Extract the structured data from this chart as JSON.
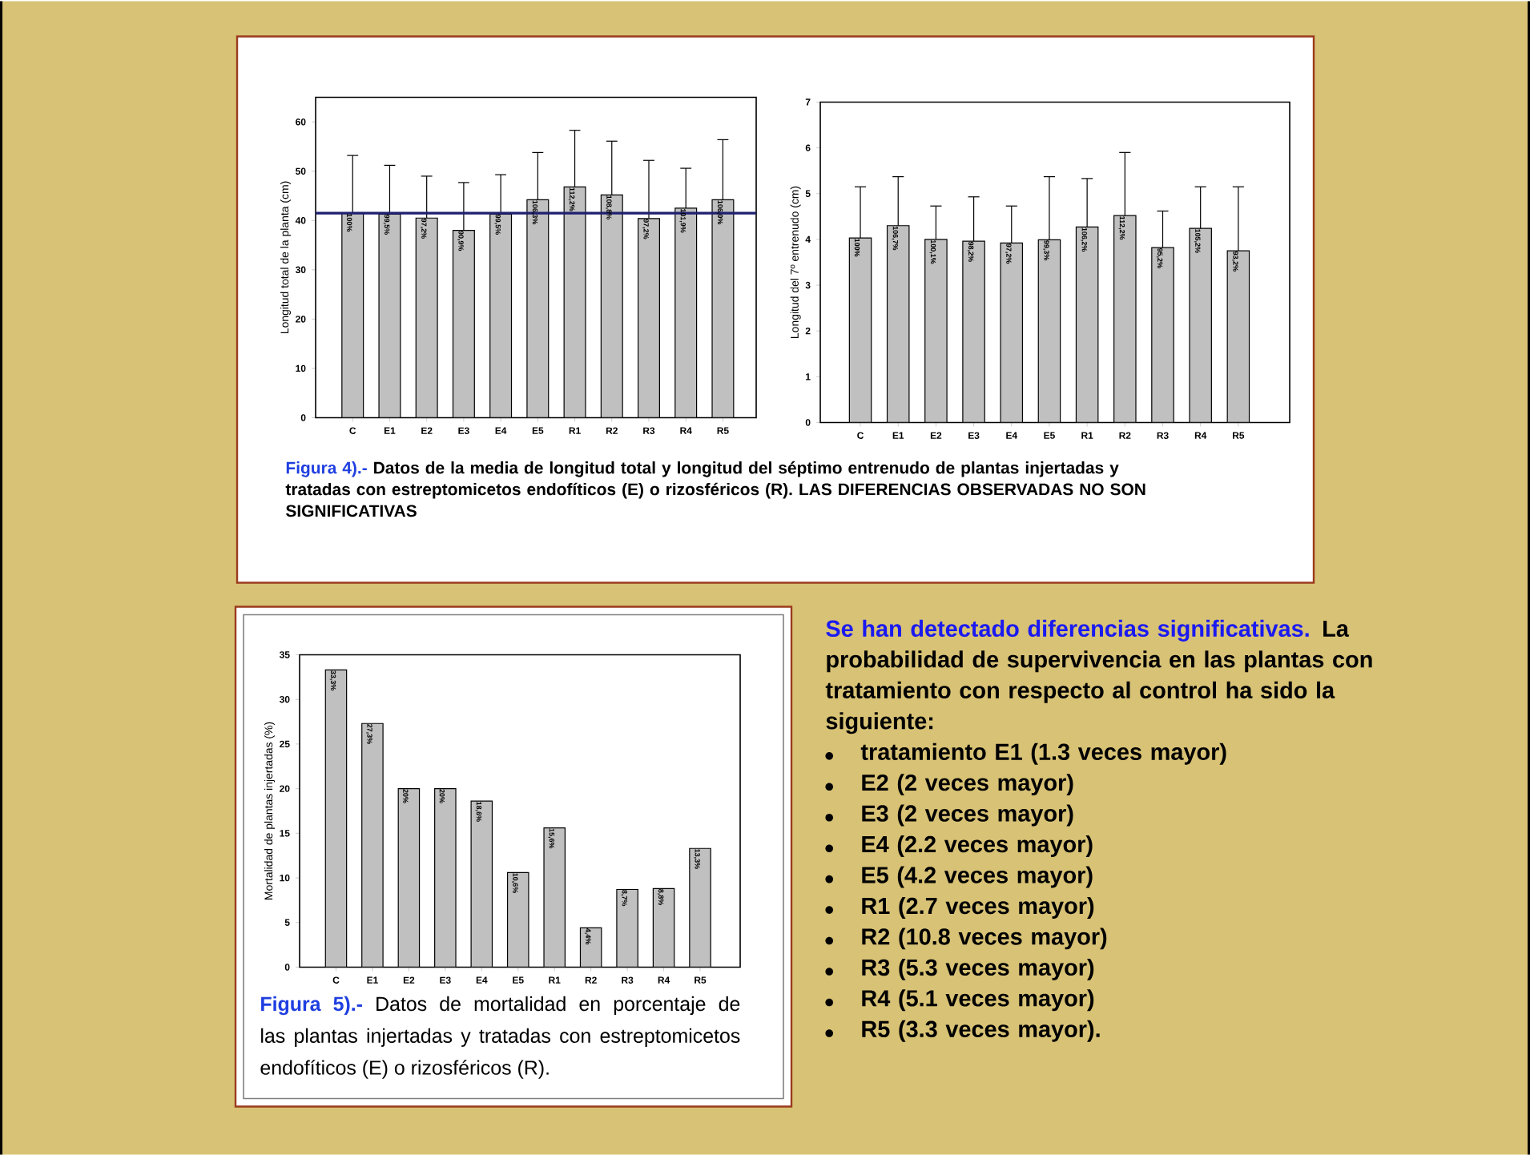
{
  "chart_data": [
    {
      "type": "bar",
      "ylabel": "Longitud total de la planta (cm)",
      "categories": [
        "C",
        "E1",
        "E2",
        "E3",
        "E4",
        "E5",
        "R1",
        "R2",
        "R3",
        "R4",
        "R5"
      ],
      "values": [
        41.5,
        41.3,
        40.5,
        38.0,
        41.3,
        44.2,
        46.8,
        45.2,
        40.4,
        42.5,
        44.2
      ],
      "errors": [
        [
          41.5,
          53.2
        ],
        [
          41.3,
          51.2
        ],
        [
          40.5,
          49.0
        ],
        [
          38.0,
          47.7
        ],
        [
          41.3,
          49.3
        ],
        [
          44.2,
          53.8
        ],
        [
          46.8,
          58.3
        ],
        [
          45.2,
          56.1
        ],
        [
          40.4,
          52.2
        ],
        [
          42.5,
          50.6
        ],
        [
          44.2,
          56.4
        ]
      ],
      "color": "#c0c0c0",
      "ylim": [
        0,
        65
      ],
      "yticks": [
        0,
        10,
        20,
        30,
        40,
        50,
        60
      ],
      "ref_lines": [
        {
          "axis": "y",
          "value": 41.5,
          "color": "#1f1f70"
        }
      ],
      "annotations": [
        "Figura 4).-",
        "Datos de la media de longitud total y longitud del séptimo entrenudo de plantas injertadas y tratadas con estreptomicetos endofíticos (E) o rizosféricos (R).",
        "LAS DIFERENCIAS OBSERVADAS NO SON SIGNIFICATIVAS",
        {
          "text": "100%",
          "x": "C",
          "y": 41.5
        },
        {
          "text": "99,5%",
          "x": "E1",
          "y": 41.3
        },
        {
          "text": "97,2%",
          "x": "E2",
          "y": 40.5
        },
        {
          "text": "90,9%",
          "x": "E3",
          "y": 38.0
        },
        {
          "text": "99,5%",
          "x": "E4",
          "y": 41.3
        },
        {
          "text": "106,3%",
          "x": "E5",
          "y": 44.2
        },
        {
          "text": "112,2%",
          "x": "R1",
          "y": 46.8
        },
        {
          "text": "108,8%",
          "x": "R2",
          "y": 45.2
        },
        {
          "text": "97,2%",
          "x": "R3",
          "y": 40.4
        },
        {
          "text": "101,9%",
          "x": "R4",
          "y": 42.5
        },
        {
          "text": "106,0%",
          "x": "R5",
          "y": 44.2
        }
      ]
    },
    {
      "type": "bar",
      "ylabel": "Longitud del 7º entrenudo (cm)",
      "categories": [
        "C",
        "E1",
        "E2",
        "E3",
        "E4",
        "E5",
        "R1",
        "R2",
        "R3",
        "R4",
        "R5"
      ],
      "values": [
        4.03,
        4.3,
        4.0,
        3.96,
        3.92,
        3.99,
        4.27,
        4.52,
        3.82,
        4.24,
        3.75
      ],
      "errors": [
        [
          4.03,
          5.15
        ],
        [
          4.3,
          5.37
        ],
        [
          4.0,
          4.73
        ],
        [
          3.96,
          4.93
        ],
        [
          3.92,
          4.73
        ],
        [
          3.99,
          5.37
        ],
        [
          4.27,
          5.33
        ],
        [
          4.52,
          5.9
        ],
        [
          3.82,
          4.62
        ],
        [
          4.24,
          5.15
        ],
        [
          3.75,
          5.15
        ]
      ],
      "color": "#c0c0c0",
      "ylim": [
        0,
        7
      ],
      "yticks": [
        0,
        1,
        2,
        3,
        4,
        5,
        6,
        7
      ],
      "annotations": [
        {
          "text": "100%",
          "x": "C",
          "y": 4.03
        },
        {
          "text": "106,7%",
          "x": "E1",
          "y": 4.3
        },
        {
          "text": "100,1%",
          "x": "E2",
          "y": 4.0
        },
        {
          "text": "98,2%",
          "x": "E3",
          "y": 3.96
        },
        {
          "text": "97,2%",
          "x": "E4",
          "y": 3.92
        },
        {
          "text": "99,3%",
          "x": "E5",
          "y": 3.99
        },
        {
          "text": "106,2%",
          "x": "R1",
          "y": 4.27
        },
        {
          "text": "112,2%",
          "x": "R2",
          "y": 4.52
        },
        {
          "text": "95,2%",
          "x": "R3",
          "y": 3.82
        },
        {
          "text": "105,2%",
          "x": "R4",
          "y": 4.24
        },
        {
          "text": "93,2%",
          "x": "R5",
          "y": 3.75
        }
      ]
    },
    {
      "type": "bar",
      "ylabel": "Mortalidad de plantas injertadas (%)",
      "categories": [
        "C",
        "E1",
        "E2",
        "E3",
        "E4",
        "E5",
        "R1",
        "R2",
        "R3",
        "R4",
        "R5"
      ],
      "values": [
        33.3,
        27.3,
        20.0,
        20.0,
        18.6,
        10.6,
        15.6,
        4.4,
        8.7,
        8.8,
        13.3
      ],
      "value_labels": [
        "33,3%",
        "27,3%",
        "20%",
        "20%",
        "18,6%",
        "10,6%",
        "15,6%",
        "4,4%",
        "8,7%",
        "8,8%",
        "13,3%"
      ],
      "color": "#c0c0c0",
      "ylim": [
        0,
        35
      ],
      "yticks": [
        0,
        5,
        10,
        15,
        20,
        25,
        30,
        35
      ],
      "annotations": [
        "Figura 5).-",
        "Datos de mortalidad en porcentaje de las plantas injertadas y tratadas con estreptomicetos endofíticos (E) o rizosféricos (R).",
        "Se han detectado diferencias significativas.",
        "La probabilidad de supervivencia en las plantas con tratamiento con respecto al control ha sido la siguiente:",
        "tratamiento E1 (1.3 veces mayor)",
        "E2 (2 veces mayor)",
        "E3 (2 veces mayor)",
        "E4 (2.2 veces mayor)",
        "E5 (4.2 veces mayor)",
        "R1 (2.7 veces mayor)",
        "R2 (10.8 veces mayor)",
        "R3 (5.3 veces mayor)",
        "R4 (5.1 veces mayor)",
        "R5 (3.3 veces mayor)."
      ]
    }
  ]
}
